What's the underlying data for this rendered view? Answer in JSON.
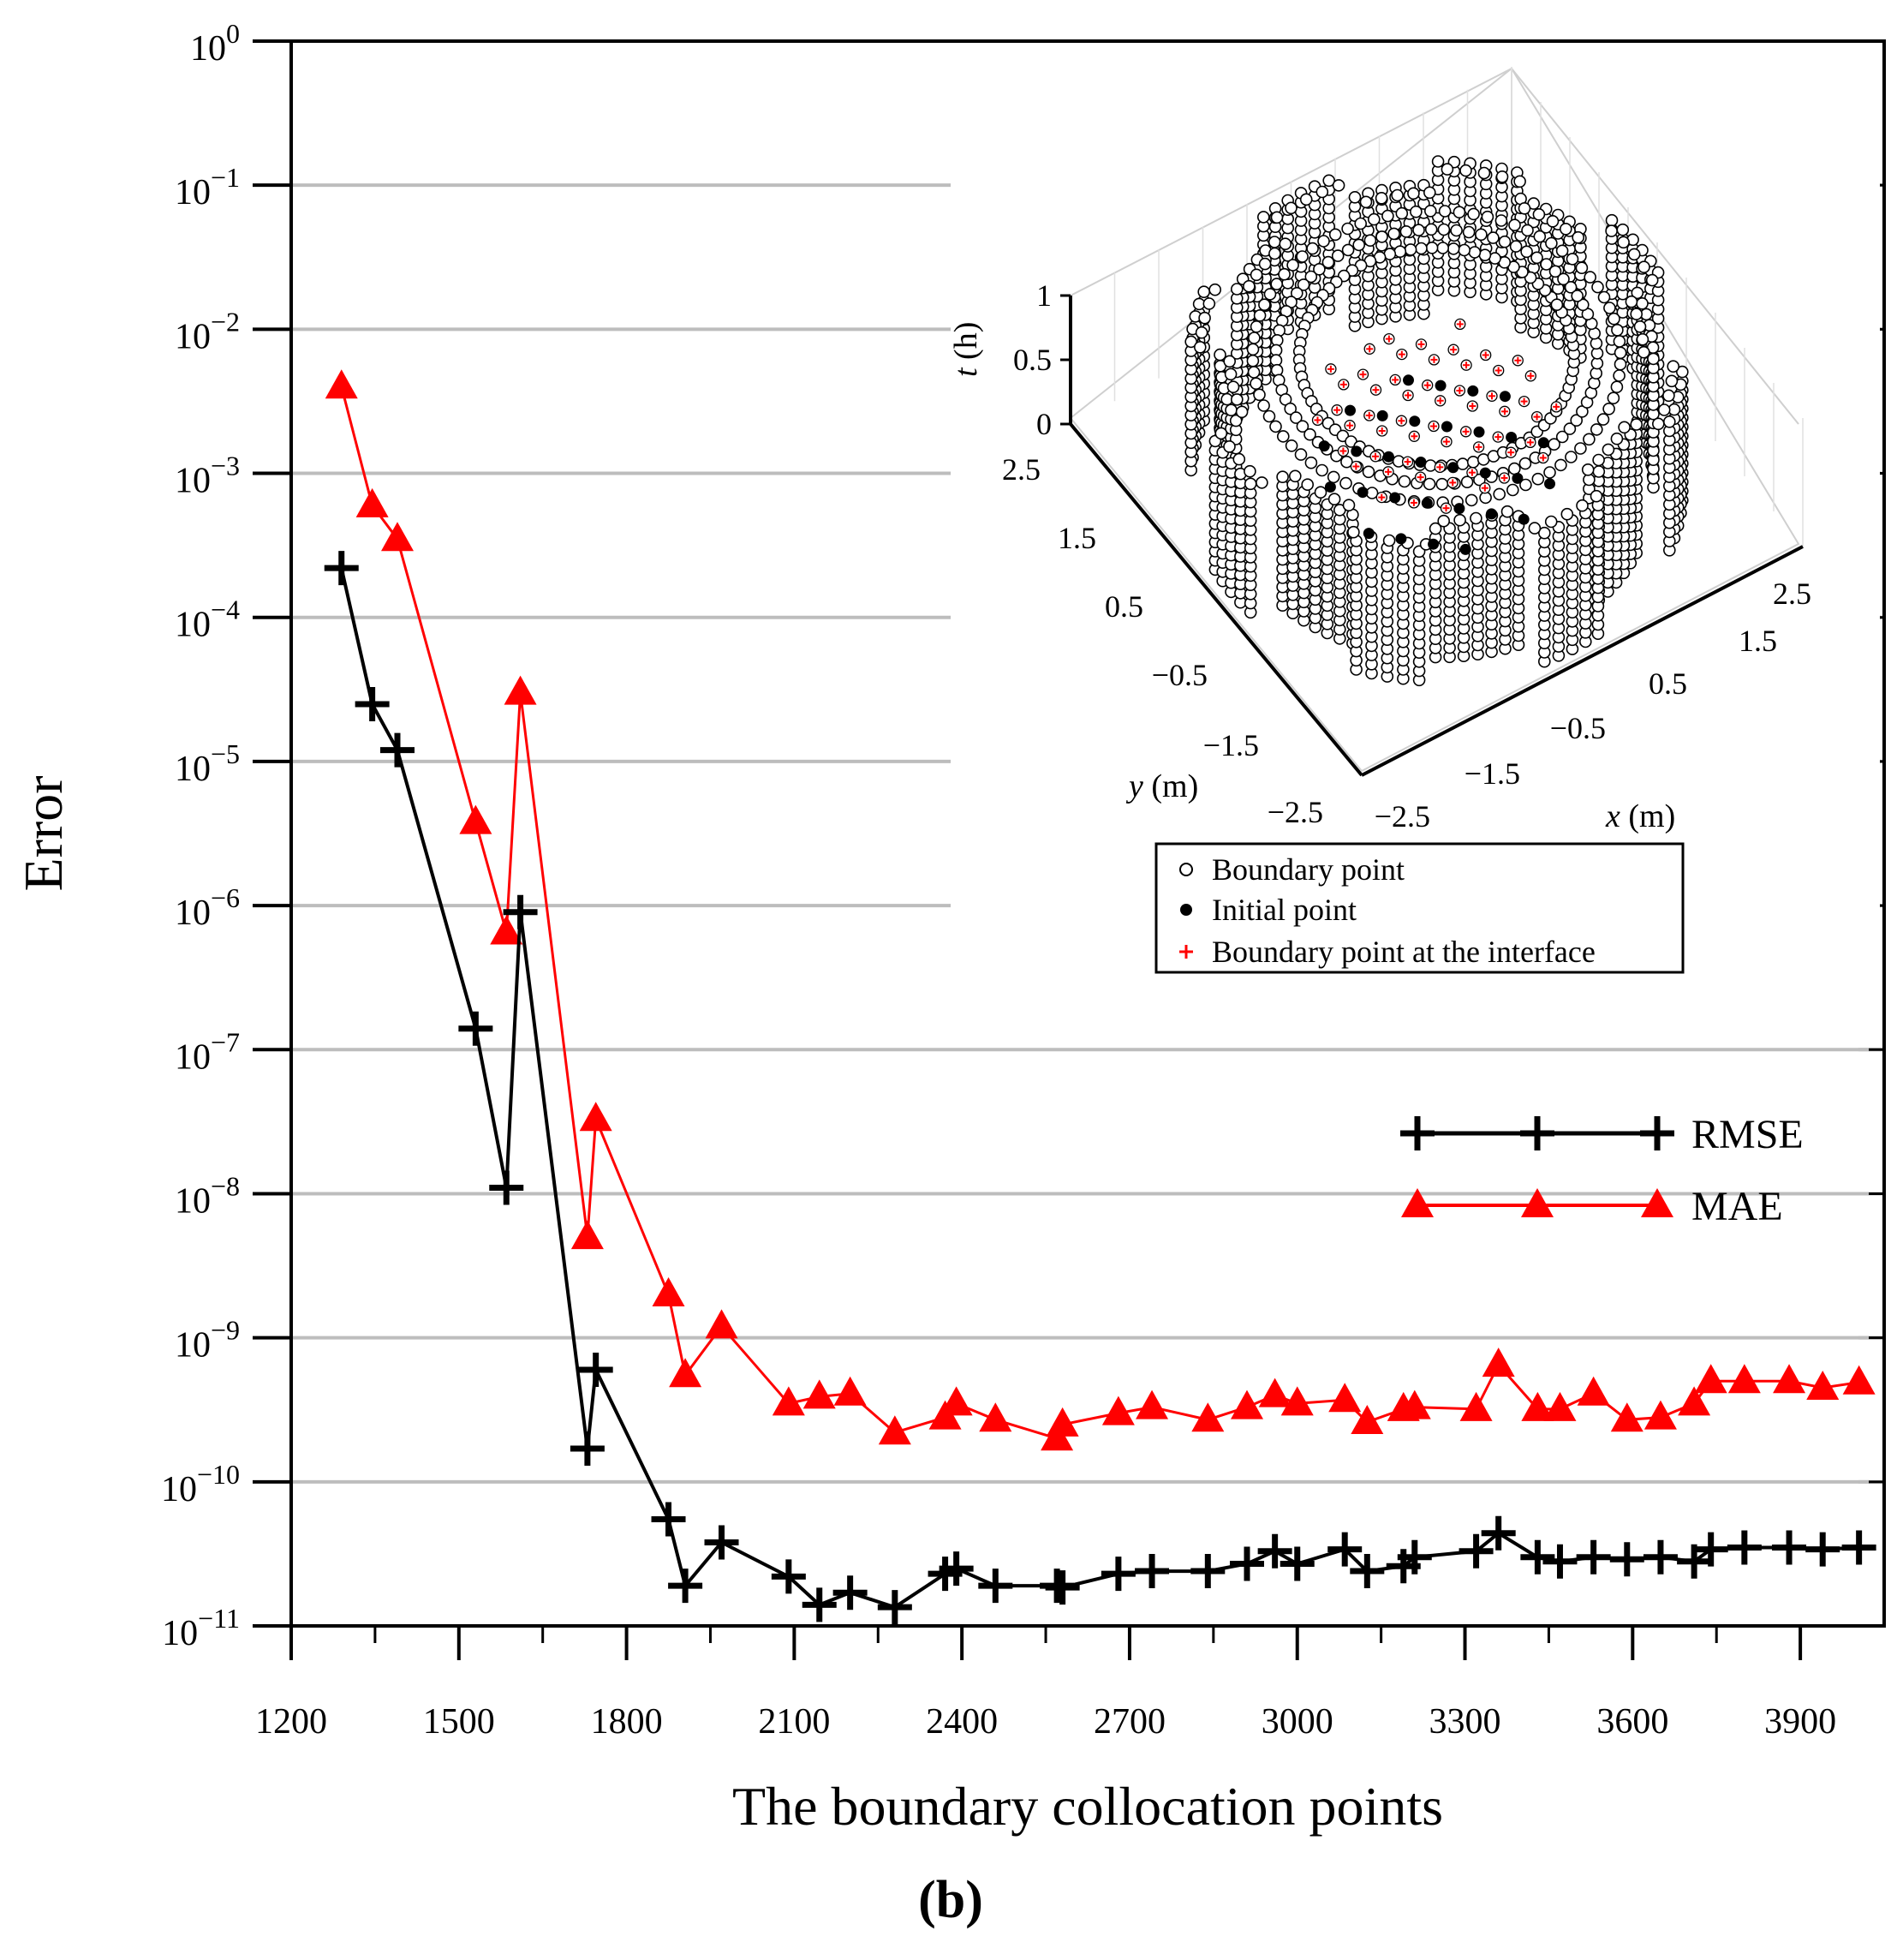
{
  "chart_data": {
    "type": "line",
    "title": "",
    "xlabel": "The boundary collocation points",
    "ylabel": "Error",
    "caption": "(b)",
    "yscale": "log",
    "ylim": [
      1e-11,
      1
    ],
    "xlim": [
      1200,
      4050
    ],
    "x_ticks": [
      1200,
      1500,
      1800,
      2100,
      2400,
      2700,
      3000,
      3300,
      3600,
      3900
    ],
    "y_ticks": [
      {
        "exp": 0,
        "base": "10",
        "power": "0"
      },
      {
        "exp": -1,
        "base": "10",
        "power": "−1"
      },
      {
        "exp": -2,
        "base": "10",
        "power": "−2"
      },
      {
        "exp": -3,
        "base": "10",
        "power": "−3"
      },
      {
        "exp": -4,
        "base": "10",
        "power": "−4"
      },
      {
        "exp": -5,
        "base": "10",
        "power": "−5"
      },
      {
        "exp": -6,
        "base": "10",
        "power": "−6"
      },
      {
        "exp": -7,
        "base": "10",
        "power": "−7"
      },
      {
        "exp": -8,
        "base": "10",
        "power": "−8"
      },
      {
        "exp": -9,
        "base": "10",
        "power": "−9"
      },
      {
        "exp": -10,
        "base": "10",
        "power": "−10"
      },
      {
        "exp": -11,
        "base": "10",
        "power": "−11"
      }
    ],
    "legend_position": "center-right",
    "series": [
      {
        "name": "RMSE",
        "color": "#000000",
        "marker": "plus",
        "x": [
          1290,
          1345,
          1390,
          1530,
          1585,
          1610,
          1730,
          1745,
          1875,
          1905,
          1970,
          2090,
          2145,
          2200,
          2280,
          2370,
          2390,
          2460,
          2570,
          2580,
          2680,
          2740,
          2840,
          2910,
          2960,
          3000,
          3085,
          3125,
          3190,
          3210,
          3320,
          3360,
          3430,
          3470,
          3530,
          3590,
          3650,
          3710,
          3740,
          3800,
          3880,
          3940,
          4005
        ],
        "y": [
          0.00022,
          2.5e-05,
          1.2e-05,
          1.4e-07,
          1.1e-08,
          9e-07,
          1.7e-10,
          6e-10,
          5.5e-11,
          1.9e-11,
          3.8e-11,
          2.2e-11,
          1.4e-11,
          1.7e-11,
          1.35e-11,
          2.3e-11,
          2.5e-11,
          1.9e-11,
          1.9e-11,
          1.85e-11,
          2.3e-11,
          2.4e-11,
          2.4e-11,
          2.7e-11,
          3.3e-11,
          2.7e-11,
          3.4e-11,
          2.4e-11,
          2.6e-11,
          3e-11,
          3.3e-11,
          4.4e-11,
          3e-11,
          2.8e-11,
          3e-11,
          2.9e-11,
          3e-11,
          2.8e-11,
          3.4e-11,
          3.5e-11,
          3.5e-11,
          3.4e-11,
          3.5e-11
        ]
      },
      {
        "name": "MAE",
        "color": "#ff0000",
        "marker": "triangle",
        "x": [
          1290,
          1345,
          1390,
          1530,
          1585,
          1610,
          1730,
          1745,
          1875,
          1905,
          1970,
          2090,
          2145,
          2200,
          2280,
          2370,
          2390,
          2460,
          2570,
          2580,
          2680,
          2740,
          2840,
          2910,
          2960,
          3000,
          3085,
          3125,
          3190,
          3210,
          3320,
          3360,
          3430,
          3470,
          3530,
          3590,
          3650,
          3710,
          3740,
          3800,
          3880,
          3940,
          4005
        ],
        "y": [
          0.004,
          0.0006,
          0.00035,
          3.8e-06,
          6.5e-07,
          3e-05,
          5e-09,
          3.3e-08,
          2e-09,
          5.5e-10,
          1.2e-09,
          3.5e-10,
          3.9e-10,
          4.1e-10,
          2.2e-10,
          2.8e-10,
          3.5e-10,
          2.7e-10,
          2e-10,
          2.5e-10,
          3e-10,
          3.3e-10,
          2.7e-10,
          3.3e-10,
          4e-10,
          3.5e-10,
          3.7e-10,
          2.6e-10,
          3.2e-10,
          3.3e-10,
          3.2e-10,
          6.5e-10,
          3.2e-10,
          3.2e-10,
          4.1e-10,
          2.7e-10,
          2.8e-10,
          3.5e-10,
          5e-10,
          5e-10,
          5e-10,
          4.5e-10,
          4.9e-10
        ]
      }
    ],
    "inset": {
      "z_label_italic": "t",
      "z_label_unit": " (h)",
      "y_label_italic": "y",
      "y_label_unit": " (m)",
      "x_label_italic": "x",
      "x_label_unit": " (m)",
      "z_ticks": [
        "1",
        "0.5",
        "0"
      ],
      "y_ticks": [
        "2.5",
        "1.5",
        "0.5",
        "−0.5",
        "−1.5",
        "−2.5"
      ],
      "x_ticks": [
        "2.5",
        "1.5",
        "0.5",
        "−0.5",
        "−1.5",
        "−2.5"
      ],
      "legend": [
        {
          "label": "Boundary point",
          "marker": "open-circle"
        },
        {
          "label": "Initial point",
          "marker": "filled-circle"
        },
        {
          "label": "Boundary point at the interface",
          "marker": "red-plus"
        }
      ]
    }
  }
}
